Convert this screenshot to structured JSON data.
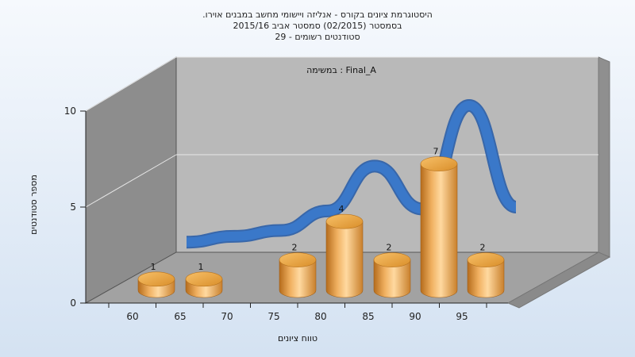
{
  "chart_data": {
    "type": "bar",
    "title_lines": [
      "היסטוגרמת ציונים בקורס - אנליזה ויישומי מחשב במבנים אוירו.",
      "בסמסטר  (02/2015)  סמסטר אביב 2015/16",
      "סטודנטים רשומים - 29"
    ],
    "panel_label": "במשימה : Final_A",
    "categories": [
      "60",
      "65",
      "70",
      "75",
      "80",
      "85",
      "90",
      "95"
    ],
    "bar_values": [
      1,
      1,
      null,
      2,
      4,
      2,
      7,
      2
    ],
    "curve_values": [
      1.9,
      2.2,
      2.5,
      3.5,
      5.8,
      3.6,
      8.9,
      3.7
    ],
    "xlabel": "טווח ציונים",
    "ylabel": "מספר סטודנטים",
    "yticks": [
      0,
      5,
      10
    ],
    "ylim": [
      0,
      10
    ],
    "bar_color": "#e8a04a",
    "curve_color": "#3a78c9"
  }
}
